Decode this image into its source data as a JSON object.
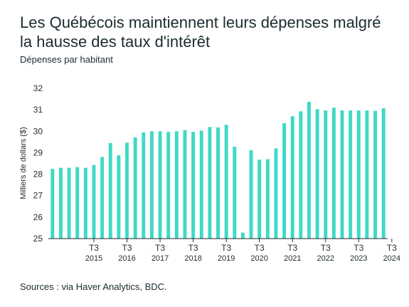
{
  "title": "Les Québécois maintiennent leurs dépenses malgré la hausse des taux d'intérêt",
  "subtitle": "Dépenses par habitant",
  "source": "Sources : via Haver Analytics, BDC.",
  "colors": {
    "bar": "#3ed9c6",
    "axis": "#1f2a2e"
  },
  "chart_data": {
    "type": "bar",
    "title": "Les Québécois maintiennent leurs dépenses malgré la hausse des taux d'intérêt",
    "subtitle": "Dépenses par habitant",
    "ylabel": "Milliers de dollars ($)",
    "ylim": [
      25,
      32
    ],
    "yticks": [
      25,
      26,
      27,
      28,
      29,
      30,
      31,
      32
    ],
    "grid": false,
    "x_tick_labels": [
      {
        "quarter": "T3",
        "year": "2015",
        "index": 6
      },
      {
        "quarter": "T3",
        "year": "2016",
        "index": 10
      },
      {
        "quarter": "T3",
        "year": "2017",
        "index": 14
      },
      {
        "quarter": "T3",
        "year": "2018",
        "index": 18
      },
      {
        "quarter": "T3",
        "year": "2019",
        "index": 22
      },
      {
        "quarter": "T3",
        "year": "2020",
        "index": 26
      },
      {
        "quarter": "T3",
        "year": "2021",
        "index": 30
      },
      {
        "quarter": "T3",
        "year": "2022",
        "index": 34
      },
      {
        "quarter": "T3",
        "year": "2023",
        "index": 38
      },
      {
        "quarter": "T3",
        "year": "2024",
        "index": 42
      }
    ],
    "values": [
      28.25,
      28.3,
      28.3,
      28.33,
      28.3,
      28.43,
      28.8,
      29.45,
      28.88,
      29.47,
      29.72,
      29.95,
      30.0,
      30.0,
      29.97,
      30.0,
      30.05,
      29.97,
      30.03,
      30.2,
      30.18,
      30.3,
      29.28,
      25.28,
      29.12,
      28.68,
      28.7,
      29.2,
      30.37,
      30.7,
      30.93,
      31.37,
      31.03,
      30.97,
      31.1,
      30.97,
      30.97,
      30.97,
      30.97,
      30.95,
      31.07
    ]
  }
}
